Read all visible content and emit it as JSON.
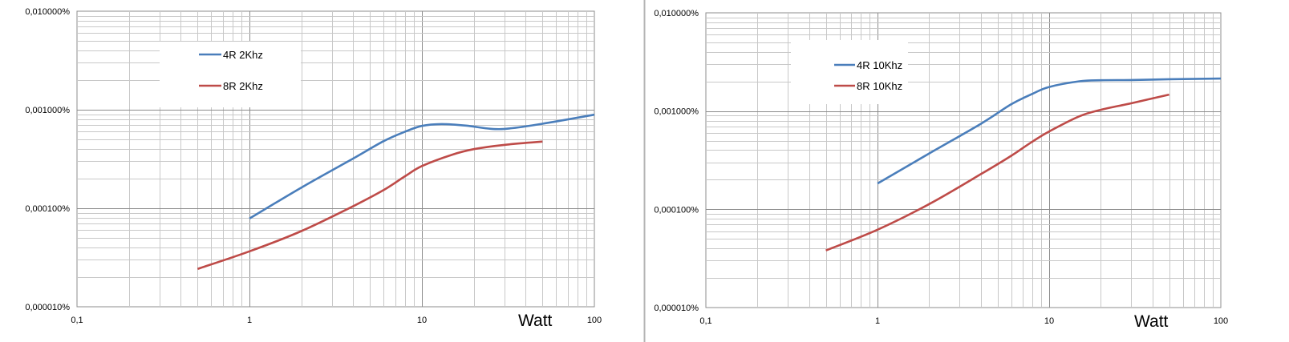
{
  "chart_data": [
    {
      "type": "line",
      "x_scale": "log",
      "y_scale": "log",
      "xlim": [
        0.1,
        100
      ],
      "ylim": [
        1e-05,
        0.01
      ],
      "x_tick_labels": [
        "0,1",
        "1",
        "10",
        "100"
      ],
      "y_tick_labels": [
        "0,000010%",
        "0,000100%",
        "0,001000%",
        "0,010000%"
      ],
      "xlabel": "Watt",
      "grid": true,
      "legend_position": "top-left",
      "series": [
        {
          "name": "4R 2Khz",
          "color": "#4a7ebb",
          "x": [
            1,
            2,
            4,
            6,
            8,
            10,
            13,
            18,
            25,
            32,
            50,
            100
          ],
          "y": [
            7.87e-05,
            0.000162,
            0.00032,
            0.00048,
            0.0006,
            0.000685,
            0.000715,
            0.00069,
            0.00064,
            0.000645,
            0.00072,
            0.00089
          ]
        },
        {
          "name": "8R 2Khz",
          "color": "#be4b48",
          "x": [
            0.5,
            1,
            2,
            4,
            6,
            8,
            10,
            15,
            20,
            30,
            50
          ],
          "y": [
            2.42e-05,
            3.65e-05,
            5.86e-05,
            0.000105,
            0.000153,
            0.000212,
            0.000268,
            0.00035,
            0.000398,
            0.00044,
            0.000475
          ]
        }
      ]
    },
    {
      "type": "line",
      "x_scale": "log",
      "y_scale": "log",
      "xlim": [
        0.1,
        100
      ],
      "ylim": [
        1e-05,
        0.01
      ],
      "x_tick_labels": [
        "0,1",
        "1",
        "10",
        "100"
      ],
      "y_tick_labels": [
        "0,000010%",
        "0,000100%",
        "0,001000%",
        "0,010000%"
      ],
      "xlabel": "Watt",
      "grid": true,
      "legend_position": "top-left",
      "series": [
        {
          "name": "4R 10Khz",
          "color": "#4a7ebb",
          "x": [
            1,
            2,
            4,
            6,
            8,
            10,
            15,
            20,
            30,
            50,
            100
          ],
          "y": [
            0.000183,
            0.00037,
            0.000742,
            0.00117,
            0.0015,
            0.00176,
            0.00201,
            0.00206,
            0.00207,
            0.00211,
            0.00214
          ]
        },
        {
          "name": "8R 10Khz",
          "color": "#be4b48",
          "x": [
            0.5,
            1,
            2,
            4,
            6,
            8,
            10,
            15,
            20,
            30,
            50
          ],
          "y": [
            3.81e-05,
            6.2e-05,
            0.000113,
            0.000228,
            0.00035,
            0.00049,
            0.00062,
            0.000885,
            0.00103,
            0.0012,
            0.00147
          ]
        }
      ]
    }
  ]
}
